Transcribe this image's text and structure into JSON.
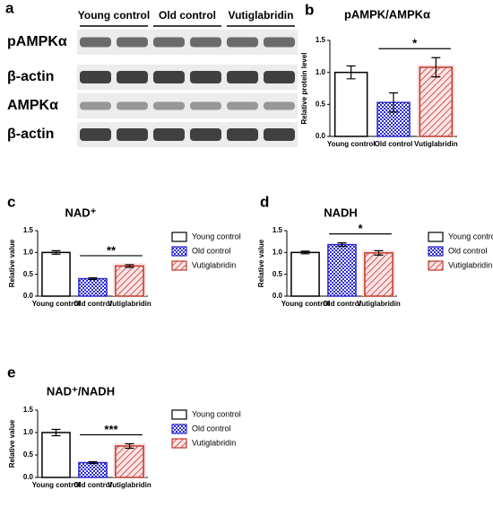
{
  "blot": {
    "panel": "a",
    "groups": [
      "Young control",
      "Old control",
      "Vutiglabridin"
    ],
    "rows": [
      "pAMPKα",
      "β-actin",
      "AMPKα",
      "β-actin"
    ]
  },
  "chart_data": [
    {
      "type": "bar",
      "panel": "b",
      "title": "pAMPK/AMPKα",
      "ylabel": "Relative protein level",
      "categories": [
        "Young control",
        "Old control",
        "Vutiglabridin"
      ],
      "values": [
        1.0,
        0.53,
        1.08
      ],
      "errors": [
        0.1,
        0.15,
        0.15
      ],
      "colors": [
        "#000000",
        "#2a2ad0",
        "#c0392b"
      ],
      "ylim": [
        0,
        1.5
      ],
      "yticks": [
        {
          "value": 0,
          "label": "0.0"
        },
        {
          "value": 0.5,
          "label": "0.5"
        },
        {
          "value": 1,
          "label": "1.0"
        },
        {
          "value": 1.5,
          "label": "1.5"
        }
      ],
      "significance": "*"
    },
    {
      "type": "bar",
      "panel": "c",
      "title": "NAD⁺",
      "ylabel": "Relative value",
      "categories": [
        "Young control",
        "Old control",
        "Vutiglabridin"
      ],
      "values": [
        1.0,
        0.4,
        0.69
      ],
      "errors": [
        0.04,
        0.02,
        0.03
      ],
      "colors": [
        "#000000",
        "#2a2ad0",
        "#c0392b"
      ],
      "ylim": [
        0,
        1.5
      ],
      "yticks": [
        {
          "value": 0,
          "label": "0.0"
        },
        {
          "value": 0.5,
          "label": "0.5"
        },
        {
          "value": 1,
          "label": "1.0"
        },
        {
          "value": 1.5,
          "label": "1.5"
        }
      ],
      "significance": "**",
      "legend": "right"
    },
    {
      "type": "bar",
      "panel": "d",
      "title": "NADH",
      "ylabel": "Relative value",
      "categories": [
        "Young control",
        "Old control",
        "Vutiglabridin"
      ],
      "values": [
        1.0,
        1.18,
        0.99
      ],
      "errors": [
        0.03,
        0.04,
        0.05
      ],
      "colors": [
        "#000000",
        "#2a2ad0",
        "#c0392b"
      ],
      "ylim": [
        0,
        1.5
      ],
      "yticks": [
        {
          "value": 0,
          "label": "0.0"
        },
        {
          "value": 0.5,
          "label": "0.5"
        },
        {
          "value": 1,
          "label": "1.0"
        },
        {
          "value": 1.5,
          "label": "1.5"
        }
      ],
      "significance": "*",
      "legend": "right"
    },
    {
      "type": "bar",
      "panel": "e",
      "title": "NAD⁺/NADH",
      "ylabel": "Relative value",
      "categories": [
        "Young control",
        "Old control",
        "Vutiglabridin"
      ],
      "values": [
        1.0,
        0.33,
        0.7
      ],
      "errors": [
        0.07,
        0.02,
        0.05
      ],
      "colors": [
        "#000000",
        "#2a2ad0",
        "#c0392b"
      ],
      "ylim": [
        0,
        1.5
      ],
      "yticks": [
        {
          "value": 0,
          "label": "0.0"
        },
        {
          "value": 0.5,
          "label": "0.5"
        },
        {
          "value": 1,
          "label": "1.0"
        },
        {
          "value": 1.5,
          "label": "1.5"
        }
      ],
      "significance": "***",
      "legend": "right"
    }
  ]
}
